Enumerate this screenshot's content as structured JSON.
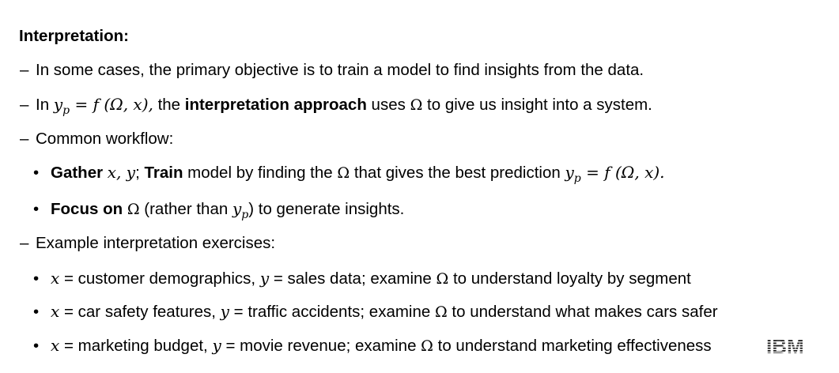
{
  "slide": {
    "heading": "Interpretation:",
    "items": [
      {
        "text": "In some cases, the primary objective is to train a model to find insights from the data."
      },
      {
        "prefix": "In",
        "equation": "y",
        "equation_sub": "p",
        "equation_rhs": " = f (Ω, x),",
        "middle": " the ",
        "bold": "interpretation approach",
        "after_bold": " uses ",
        "omega": "Ω",
        "suffix": " to give us insight into a system."
      },
      {
        "text": "Common workflow:"
      }
    ],
    "workflow": [
      {
        "bold1": "Gather",
        "math1": "x, y",
        "sep": ";",
        "bold2": "Train",
        "text1": " model by finding the ",
        "omega": "Ω",
        "text2": " that gives the best prediction ",
        "math_y": "y",
        "math_sub": "p",
        "math_rhs": " = f (Ω, x)."
      },
      {
        "bold1": "Focus on",
        "omega": "Ω",
        "text1": " (rather than ",
        "math_y": "y",
        "math_sub": "p",
        "text2": ") to generate insights."
      }
    ],
    "examples_heading": "Example interpretation exercises:",
    "examples": [
      {
        "x_var": "x",
        "x_desc": " = customer demographics, ",
        "y_var": "y",
        "y_desc": " = sales data; examine ",
        "omega": "Ω",
        "goal": " to understand loyalty by segment"
      },
      {
        "x_var": "x",
        "x_desc": " = car safety features, ",
        "y_var": "y",
        "y_desc": " = traffic accidents; examine ",
        "omega": "Ω",
        "goal": " to understand what makes cars safer"
      },
      {
        "x_var": "x",
        "x_desc": " = marketing budget, ",
        "y_var": "y",
        "y_desc": " = movie revenue; examine ",
        "omega": "Ω",
        "goal": " to understand marketing effectiveness"
      }
    ],
    "dash_symbol": "–",
    "bullet_symbol": "•",
    "logo_text": "IBM"
  },
  "colors": {
    "background": "#ffffff",
    "text": "#000000",
    "logo": "#1a1a1a"
  },
  "icons": {
    "logo": "ibm-logo"
  }
}
